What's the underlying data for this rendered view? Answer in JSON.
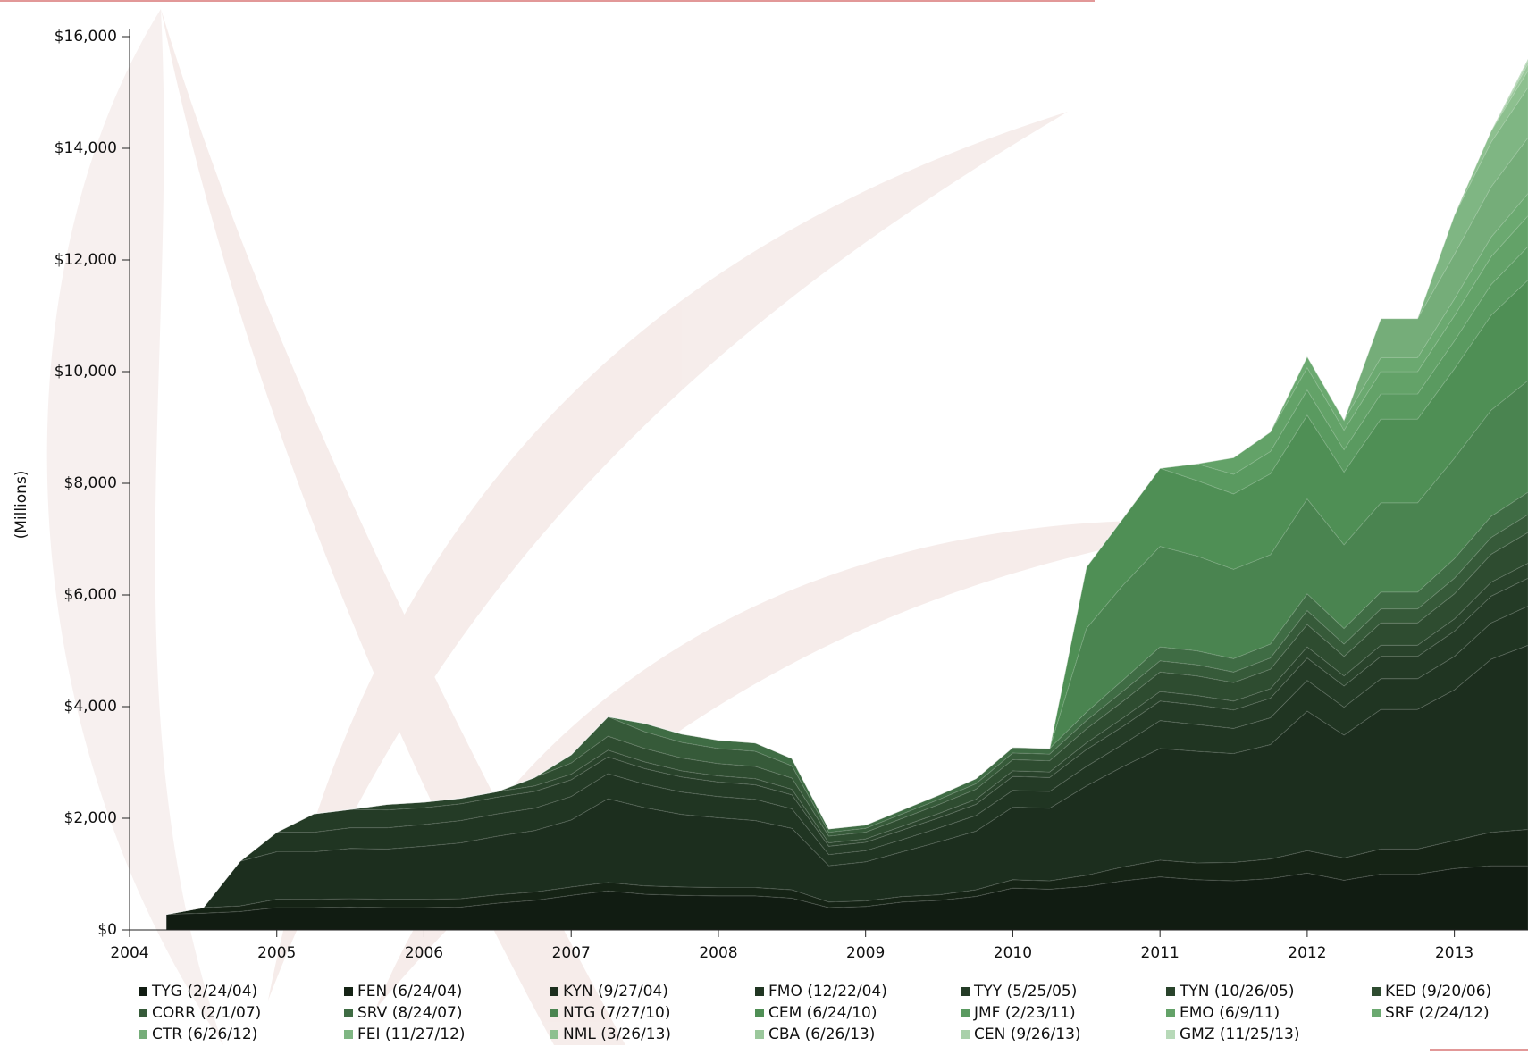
{
  "chart_data": {
    "type": "stacked_area",
    "y_label": "(Millions)",
    "x": [
      2004.25,
      2004.5,
      2004.75,
      2005,
      2005.25,
      2005.5,
      2005.75,
      2006,
      2006.25,
      2006.5,
      2006.75,
      2007,
      2007.25,
      2007.5,
      2007.75,
      2008,
      2008.25,
      2008.5,
      2008.75,
      2009,
      2009.25,
      2009.5,
      2009.75,
      2010,
      2010.25,
      2010.5,
      2010.75,
      2011,
      2011.25,
      2011.5,
      2011.75,
      2012,
      2012.25,
      2012.5,
      2012.75,
      2013,
      2013.25,
      2013.5
    ],
    "xlim": [
      2004,
      2013.5
    ],
    "xticks": [
      2004,
      2005,
      2006,
      2007,
      2008,
      2009,
      2010,
      2011,
      2012,
      2013
    ],
    "ylim": [
      0,
      16000
    ],
    "yticks": [
      {
        "value": 0,
        "label": "$0"
      },
      {
        "value": 2000,
        "label": "$2,000"
      },
      {
        "value": 4000,
        "label": "$4,000"
      },
      {
        "value": 6000,
        "label": "$6,000"
      },
      {
        "value": 8000,
        "label": "$8,000"
      },
      {
        "value": 10000,
        "label": "$10,000"
      },
      {
        "value": 12000,
        "label": "$12,000"
      },
      {
        "value": 14000,
        "label": "$14,000"
      },
      {
        "value": 16000,
        "label": "$16,000"
      }
    ],
    "series": [
      {
        "name": "TYG (2/24/04)",
        "color": "#111c12",
        "values": [
          280,
          300,
          330,
          400,
          400,
          410,
          400,
          400,
          410,
          480,
          530,
          620,
          700,
          640,
          620,
          610,
          610,
          570,
          400,
          420,
          500,
          530,
          600,
          750,
          730,
          780,
          880,
          950,
          900,
          880,
          920,
          1020,
          890,
          1000,
          1000,
          1100,
          1150,
          1150
        ]
      },
      {
        "name": "FEN (6/24/04)",
        "color": "#152315",
        "values": [
          0,
          100,
          100,
          150,
          150,
          150,
          150,
          150,
          150,
          150,
          150,
          150,
          150,
          150,
          150,
          150,
          150,
          150,
          100,
          100,
          100,
          100,
          120,
          150,
          150,
          200,
          250,
          300,
          300,
          330,
          350,
          400,
          400,
          450,
          450,
          500,
          600,
          650
        ]
      },
      {
        "name": "KYN (9/27/04)",
        "color": "#1c2e1e",
        "values": [
          0,
          0,
          800,
          850,
          850,
          900,
          900,
          950,
          1000,
          1050,
          1100,
          1200,
          1500,
          1400,
          1300,
          1250,
          1200,
          1100,
          650,
          700,
          800,
          950,
          1050,
          1300,
          1300,
          1600,
          1800,
          2000,
          2000,
          1950,
          2050,
          2500,
          2200,
          2500,
          2500,
          2700,
          3100,
          3300
        ]
      },
      {
        "name": "FMO (12/22/04)",
        "color": "#203522",
        "values": [
          0,
          0,
          0,
          350,
          350,
          370,
          380,
          390,
          400,
          400,
          400,
          420,
          450,
          420,
          400,
          380,
          380,
          350,
          200,
          200,
          220,
          250,
          280,
          300,
          300,
          350,
          400,
          500,
          480,
          450,
          480,
          550,
          500,
          550,
          550,
          600,
          650,
          700
        ]
      },
      {
        "name": "TYY (5/25/05)",
        "color": "#243b26",
        "values": [
          0,
          0,
          0,
          0,
          330,
          330,
          320,
          300,
          300,
          300,
          300,
          300,
          300,
          280,
          270,
          260,
          260,
          250,
          150,
          150,
          170,
          180,
          200,
          250,
          250,
          300,
          320,
          350,
          350,
          330,
          350,
          400,
          380,
          400,
          400,
          450,
          480,
          500
        ]
      },
      {
        "name": "TYN (10/26/05)",
        "color": "#29432b",
        "values": [
          0,
          0,
          0,
          0,
          0,
          0,
          100,
          100,
          100,
          100,
          100,
          100,
          120,
          120,
          110,
          110,
          110,
          100,
          60,
          60,
          70,
          80,
          90,
          100,
          100,
          120,
          150,
          170,
          170,
          160,
          170,
          200,
          180,
          200,
          200,
          220,
          250,
          270
        ]
      },
      {
        "name": "KED (9/20/06)",
        "color": "#2e4c30",
        "values": [
          0,
          0,
          0,
          0,
          0,
          0,
          0,
          0,
          0,
          0,
          150,
          200,
          250,
          240,
          230,
          220,
          220,
          200,
          120,
          120,
          140,
          160,
          180,
          200,
          200,
          250,
          300,
          350,
          350,
          330,
          350,
          400,
          350,
          400,
          400,
          450,
          500,
          550
        ]
      },
      {
        "name": "CORR (2/1/07)",
        "color": "#365a39",
        "values": [
          0,
          0,
          0,
          0,
          0,
          0,
          0,
          0,
          0,
          0,
          0,
          150,
          350,
          300,
          280,
          270,
          270,
          220,
          70,
          70,
          80,
          90,
          100,
          120,
          120,
          150,
          180,
          200,
          200,
          190,
          200,
          250,
          220,
          250,
          250,
          280,
          300,
          320
        ]
      },
      {
        "name": "SRV (8/24/07)",
        "color": "#3f6c44",
        "values": [
          0,
          0,
          0,
          0,
          0,
          0,
          0,
          0,
          0,
          0,
          0,
          0,
          0,
          150,
          150,
          150,
          150,
          130,
          60,
          60,
          70,
          80,
          90,
          100,
          100,
          150,
          200,
          250,
          250,
          240,
          250,
          300,
          280,
          300,
          300,
          350,
          380,
          400
        ]
      },
      {
        "name": "NTG (7/27/10)",
        "color": "#4a8450",
        "values": [
          0,
          0,
          0,
          0,
          0,
          0,
          0,
          0,
          0,
          0,
          0,
          0,
          0,
          0,
          0,
          0,
          0,
          0,
          0,
          0,
          0,
          0,
          0,
          0,
          0,
          1500,
          1700,
          1800,
          1700,
          1600,
          1600,
          1700,
          1500,
          1600,
          1600,
          1800,
          1900,
          2000
        ]
      },
      {
        "name": "CEM (6/24/10)",
        "color": "#4f8f55",
        "values": [
          0,
          0,
          0,
          0,
          0,
          0,
          0,
          0,
          0,
          0,
          0,
          0,
          0,
          0,
          0,
          0,
          0,
          0,
          0,
          0,
          0,
          0,
          0,
          0,
          0,
          1100,
          1200,
          1400,
          1350,
          1350,
          1450,
          1500,
          1300,
          1500,
          1500,
          1600,
          1700,
          1800
        ]
      },
      {
        "name": "JMF (2/23/11)",
        "color": "#5a9a60",
        "values": [
          0,
          0,
          0,
          0,
          0,
          0,
          0,
          0,
          0,
          0,
          0,
          0,
          0,
          0,
          0,
          0,
          0,
          0,
          0,
          0,
          0,
          0,
          0,
          0,
          0,
          0,
          0,
          0,
          300,
          350,
          400,
          450,
          400,
          450,
          450,
          500,
          550,
          600
        ]
      },
      {
        "name": "EMO (6/9/11)",
        "color": "#63a268",
        "values": [
          0,
          0,
          0,
          0,
          0,
          0,
          0,
          0,
          0,
          0,
          0,
          0,
          0,
          0,
          0,
          0,
          0,
          0,
          0,
          0,
          0,
          0,
          0,
          0,
          0,
          0,
          0,
          0,
          0,
          300,
          350,
          400,
          350,
          400,
          400,
          450,
          500,
          550
        ]
      },
      {
        "name": "SRF (2/24/12)",
        "color": "#6ba970",
        "values": [
          0,
          0,
          0,
          0,
          0,
          0,
          0,
          0,
          0,
          0,
          0,
          0,
          0,
          0,
          0,
          0,
          0,
          0,
          0,
          0,
          0,
          0,
          0,
          0,
          0,
          0,
          0,
          0,
          0,
          0,
          0,
          200,
          180,
          250,
          250,
          300,
          350,
          400
        ]
      },
      {
        "name": "CTR (6/26/12)",
        "color": "#75ad79",
        "values": [
          0,
          0,
          0,
          0,
          0,
          0,
          0,
          0,
          0,
          0,
          0,
          0,
          0,
          0,
          0,
          0,
          0,
          0,
          0,
          0,
          0,
          0,
          0,
          0,
          0,
          0,
          0,
          0,
          0,
          0,
          0,
          0,
          0,
          700,
          700,
          800,
          900,
          1000
        ]
      },
      {
        "name": "FEI (11/27/12)",
        "color": "#7fb683",
        "values": [
          0,
          0,
          0,
          0,
          0,
          0,
          0,
          0,
          0,
          0,
          0,
          0,
          0,
          0,
          0,
          0,
          0,
          0,
          0,
          0,
          0,
          0,
          0,
          0,
          0,
          0,
          0,
          0,
          0,
          0,
          0,
          0,
          0,
          0,
          0,
          700,
          800,
          900
        ]
      },
      {
        "name": "NML (3/26/13)",
        "color": "#8dc08f",
        "values": [
          0,
          0,
          0,
          0,
          0,
          0,
          0,
          0,
          0,
          0,
          0,
          0,
          0,
          0,
          0,
          0,
          0,
          0,
          0,
          0,
          0,
          0,
          0,
          0,
          0,
          0,
          0,
          0,
          0,
          0,
          0,
          0,
          0,
          0,
          0,
          0,
          200,
          300
        ]
      },
      {
        "name": "CBA (6/26/13)",
        "color": "#9bc89c",
        "values": [
          0,
          0,
          0,
          0,
          0,
          0,
          0,
          0,
          0,
          0,
          0,
          0,
          0,
          0,
          0,
          0,
          0,
          0,
          0,
          0,
          0,
          0,
          0,
          0,
          0,
          0,
          0,
          0,
          0,
          0,
          0,
          0,
          0,
          0,
          0,
          0,
          0,
          120
        ]
      },
      {
        "name": "CEN (9/26/13)",
        "color": "#a9d0aa",
        "values": [
          0,
          0,
          0,
          0,
          0,
          0,
          0,
          0,
          0,
          0,
          0,
          0,
          0,
          0,
          0,
          0,
          0,
          0,
          0,
          0,
          0,
          0,
          0,
          0,
          0,
          0,
          0,
          0,
          0,
          0,
          0,
          0,
          0,
          0,
          0,
          0,
          0,
          60
        ]
      },
      {
        "name": "GMZ (11/25/13)",
        "color": "#b7d9b8",
        "values": [
          0,
          0,
          0,
          0,
          0,
          0,
          0,
          0,
          0,
          0,
          0,
          0,
          0,
          0,
          0,
          0,
          0,
          0,
          0,
          0,
          0,
          0,
          0,
          0,
          0,
          0,
          0,
          0,
          0,
          0,
          0,
          0,
          0,
          0,
          0,
          0,
          0,
          30
        ]
      }
    ]
  }
}
